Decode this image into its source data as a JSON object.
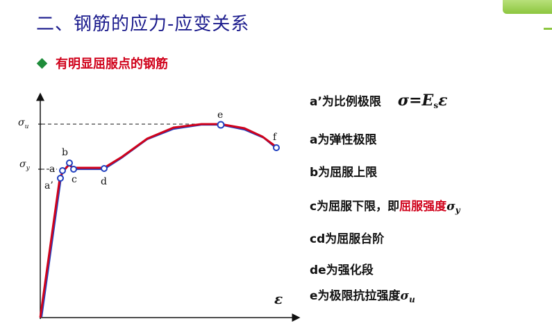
{
  "header": {
    "title": "二、钢筋的应力-应变关系",
    "subtitle": "有明显屈服点的钢筋"
  },
  "diagram": {
    "x_axis_symbol": "ε",
    "y_tick_sigma_u": {
      "sym": "σ",
      "sub": "u"
    },
    "y_tick_sigma_y": {
      "sym": "σ",
      "sub": "y"
    },
    "points": {
      "a_prime": "a’",
      "a": "a",
      "b": "b",
      "c": "c",
      "d": "d",
      "e": "e",
      "f": "f"
    }
  },
  "definitions": [
    {
      "text": "a’为比例极限"
    },
    {
      "text": "a为弹性极限"
    },
    {
      "text": "b为屈服上限"
    },
    {
      "text": "c为屈服下限，即",
      "highlight": "屈服强度",
      "sym": "σ",
      "sub": "y"
    },
    {
      "text": "cd为屈服台阶"
    },
    {
      "text": "de为强化段"
    },
    {
      "text": "e为极限抗拉强度",
      "sym": "σ",
      "sub": "u"
    }
  ],
  "formula": {
    "sigma": "σ",
    "equals": "=",
    "E": "E",
    "E_sub": "s",
    "epsilon": "ε"
  },
  "colors": {
    "title": "#1a1a8c",
    "subtitle": "#d0021b",
    "curve_red": "#d0021b",
    "curve_blue": "#1f3fbf",
    "bullet": "#1e8c3a",
    "corner": "#8cc63f"
  }
}
